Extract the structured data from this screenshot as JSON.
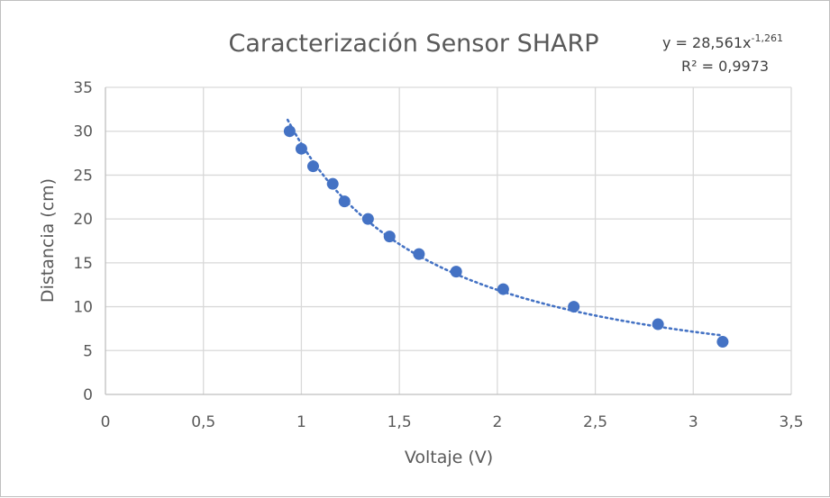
{
  "chart_data": {
    "type": "scatter",
    "title": "Caracterización Sensor SHARP",
    "xlabel": "Voltaje (V)",
    "ylabel": "Distancia (cm)",
    "xlim": [
      0,
      3.5
    ],
    "ylim": [
      0,
      35
    ],
    "x_ticks": [
      "0",
      "0,5",
      "1",
      "1,5",
      "2",
      "2,5",
      "3",
      "3,5"
    ],
    "y_ticks": [
      "0",
      "5",
      "10",
      "15",
      "20",
      "25",
      "30",
      "35"
    ],
    "grid": true,
    "color": "#4472c4",
    "series": [
      {
        "x": [
          0.94,
          1.0,
          1.06,
          1.16,
          1.22,
          1.34,
          1.45,
          1.6,
          1.79,
          2.03,
          2.39,
          2.82,
          3.15
        ],
        "y": [
          30,
          28,
          26,
          24,
          22,
          20,
          18,
          16,
          14,
          12,
          10,
          8,
          6
        ]
      }
    ],
    "trendline": {
      "type": "power",
      "coefficient": 28.561,
      "exponent": -1.261,
      "x_range": [
        0.93,
        3.15
      ],
      "equation_label": "y = 28,561x",
      "equation_exponent": "-1,261",
      "r2_label": "R² = 0,9973"
    }
  }
}
